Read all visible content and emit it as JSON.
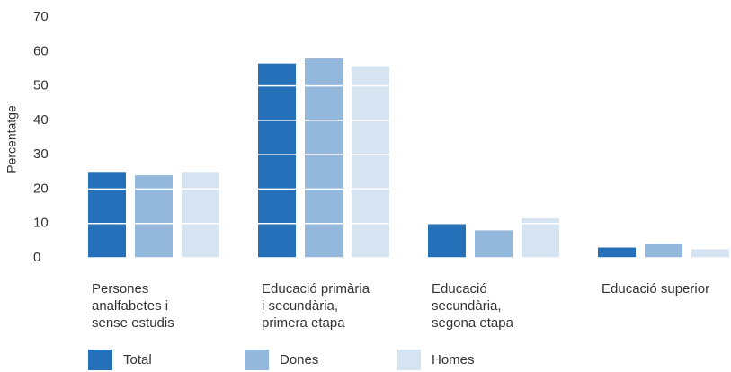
{
  "chart_data": {
    "type": "bar",
    "y_label": "Percentatge",
    "categories": [
      "Persones\nanalfabetes i\nsense estudis",
      "Educació primària\ni secundària,\nprimera etapa",
      "Educació\nsecundària,\nsegona etapa",
      "Educació superior"
    ],
    "series": [
      {
        "name": "Total",
        "color": "#2470b9",
        "values": [
          25,
          56.5,
          10,
          3
        ]
      },
      {
        "name": "Dones",
        "color": "#93b8dc",
        "values": [
          24,
          58,
          8,
          4
        ]
      },
      {
        "name": "Homes",
        "color": "#d6e4f2",
        "values": [
          25,
          55.5,
          11.5,
          2.5
        ]
      }
    ],
    "ylim": [
      0,
      70
    ],
    "yticks": [
      0,
      10,
      20,
      30,
      40,
      50,
      60,
      70
    ],
    "grid": true
  }
}
